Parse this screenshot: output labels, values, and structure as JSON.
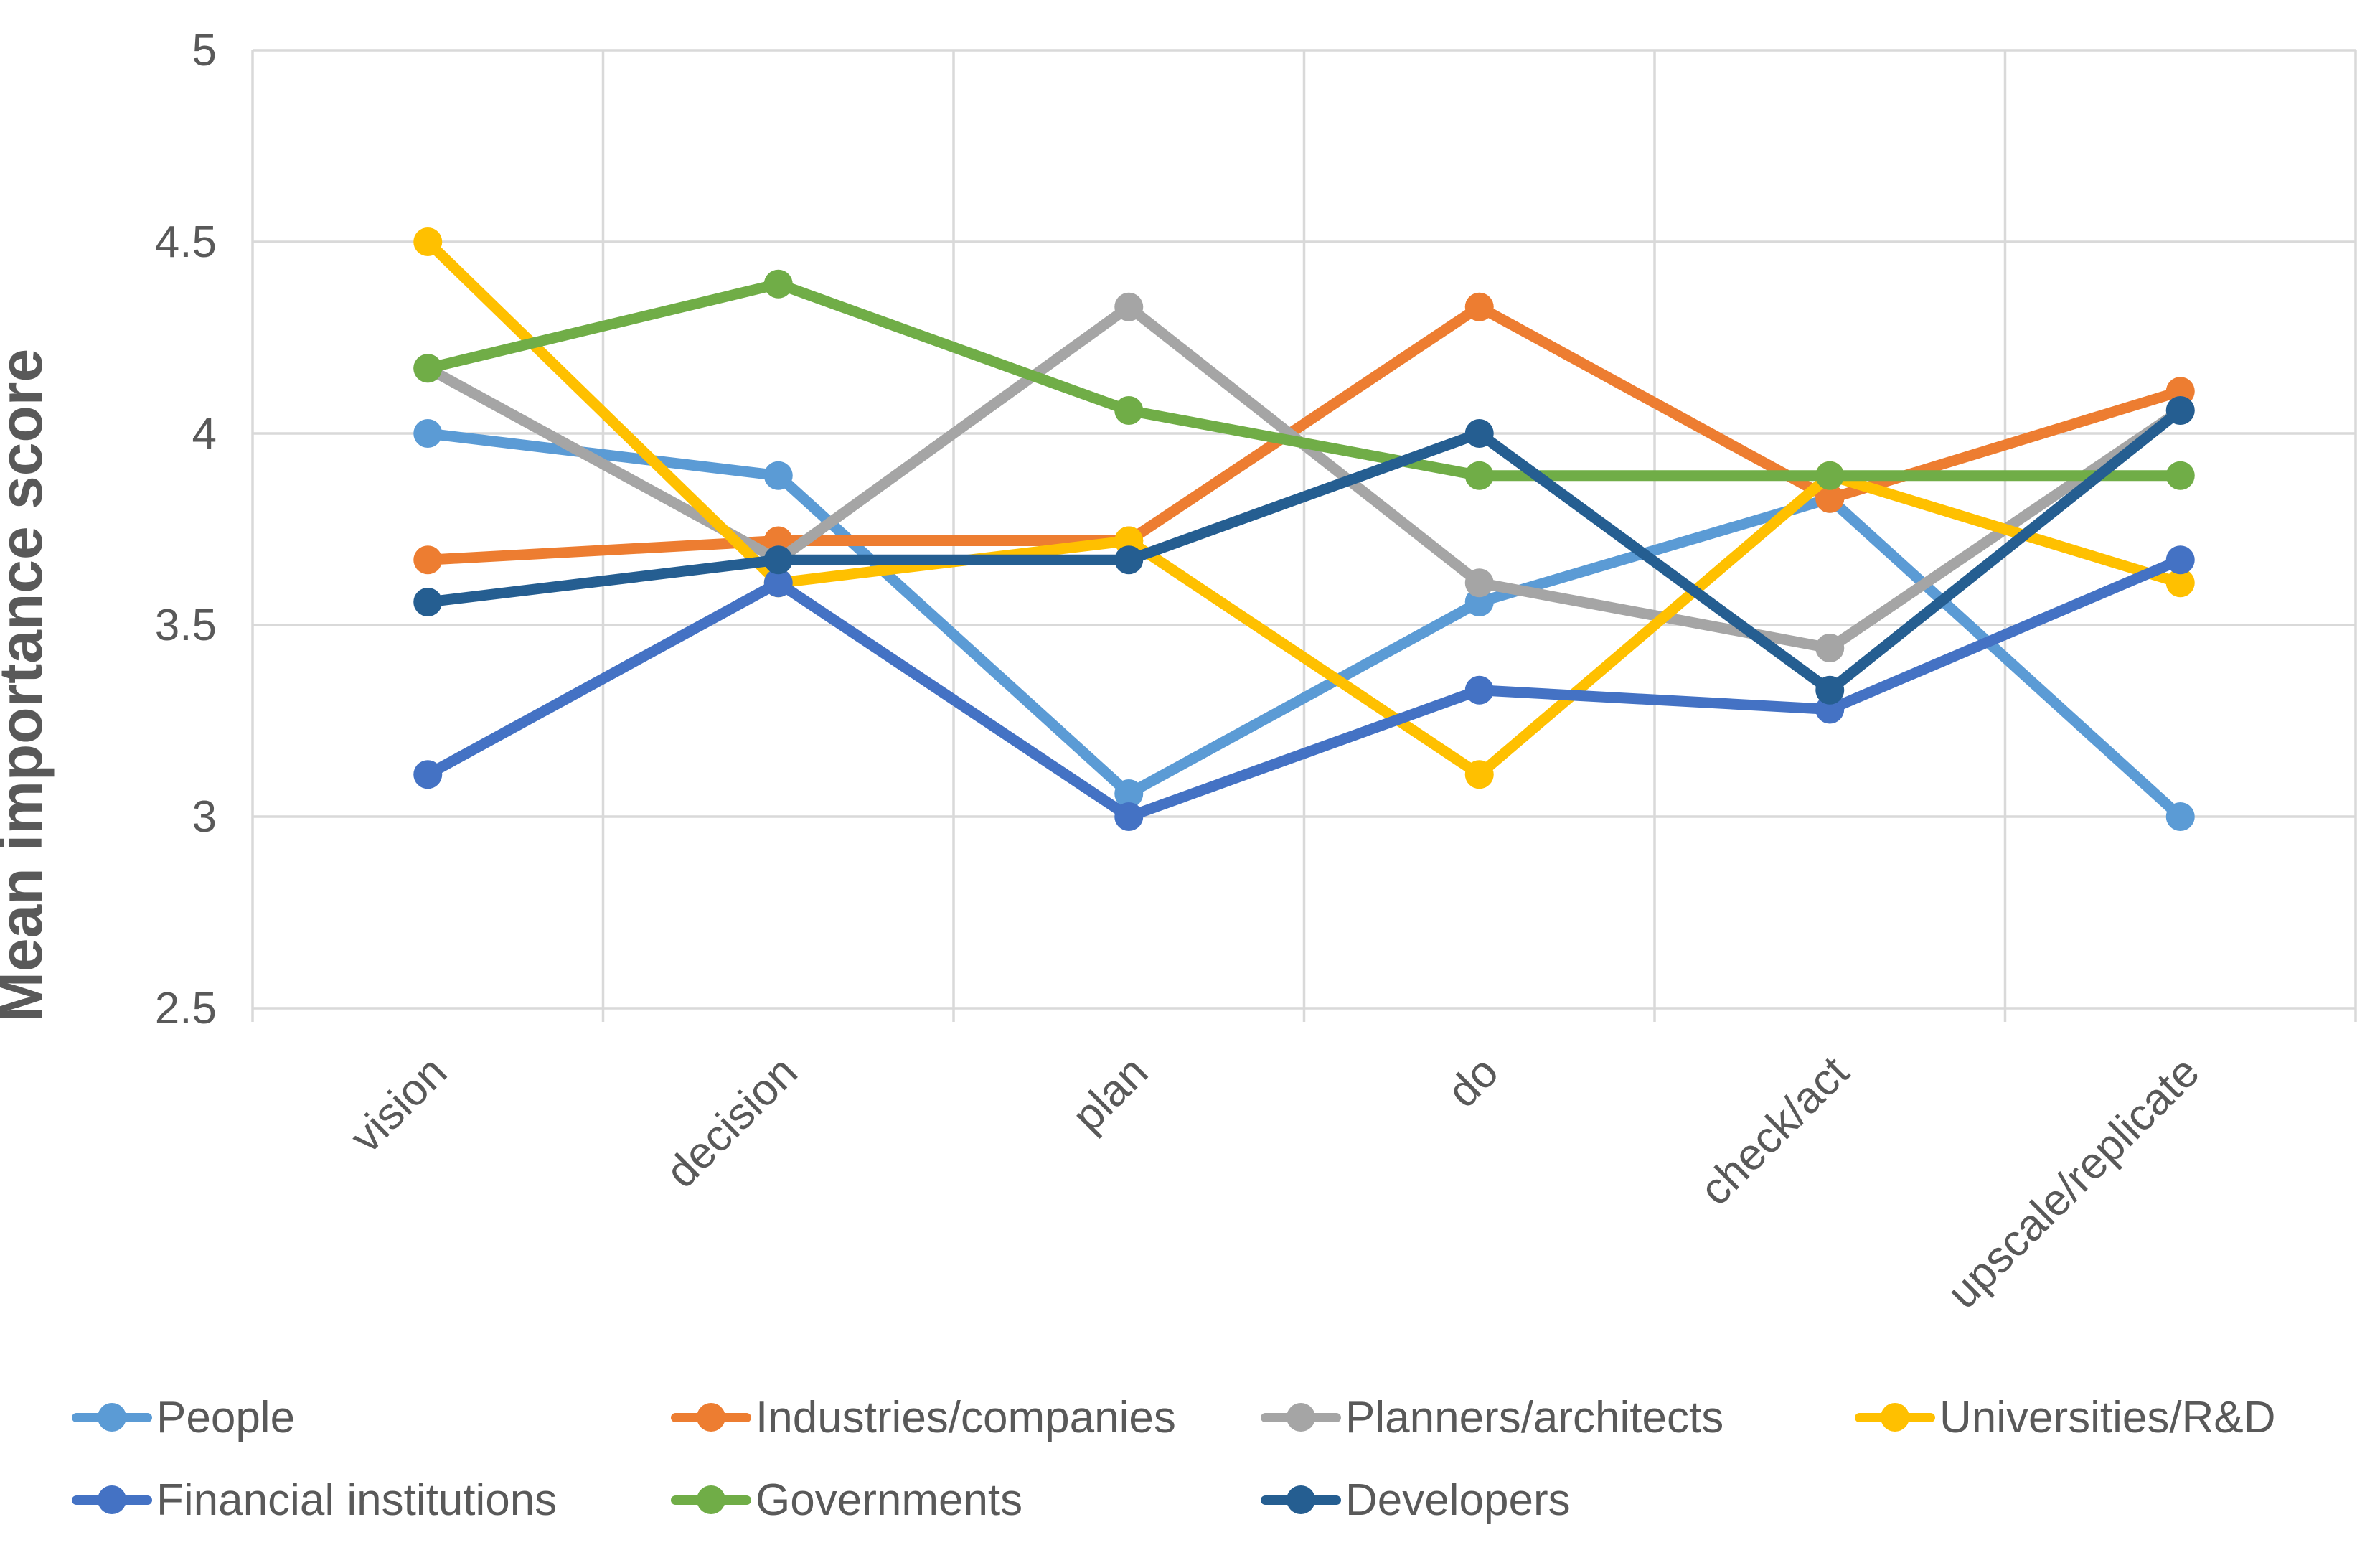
{
  "chart_data": {
    "type": "line",
    "title": "",
    "xlabel": "",
    "ylabel": "Mean importance score",
    "ylim": [
      2.5,
      5
    ],
    "grid": true,
    "legend_position": "bottom",
    "yticks": [
      {
        "value": 5,
        "label": "5"
      },
      {
        "value": 4.5,
        "label": "4.5"
      },
      {
        "value": 4,
        "label": "4"
      },
      {
        "value": 3.5,
        "label": "3.5"
      },
      {
        "value": 3,
        "label": "3"
      },
      {
        "value": 2.5,
        "label": "2.5"
      }
    ],
    "categories": [
      "vision",
      "decision",
      "plan",
      "do",
      "check/act",
      "upscale/replicate"
    ],
    "series": [
      {
        "name": "People",
        "color": "#5B9BD5",
        "values": [
          4.0,
          3.89,
          3.06,
          3.56,
          3.83,
          3.0
        ]
      },
      {
        "name": "Industries/companies",
        "color": "#ED7D31",
        "values": [
          3.67,
          3.72,
          3.72,
          4.33,
          3.83,
          4.11
        ]
      },
      {
        "name": "Planners/architects",
        "color": "#A5A5A5",
        "values": [
          4.17,
          3.67,
          4.33,
          3.61,
          3.44,
          4.06
        ]
      },
      {
        "name": "Universities/R&D",
        "color": "#FFC000",
        "values": [
          4.5,
          3.61,
          3.72,
          3.11,
          3.89,
          3.61
        ]
      },
      {
        "name": "Financial institutions",
        "color": "#4472C4",
        "values": [
          3.11,
          3.61,
          3.0,
          3.33,
          3.28,
          3.67
        ]
      },
      {
        "name": "Governments",
        "color": "#70AD47",
        "values": [
          4.17,
          4.39,
          4.06,
          3.89,
          3.89,
          3.89
        ]
      },
      {
        "name": "Developers",
        "color": "#255E91",
        "values": [
          3.56,
          3.67,
          3.67,
          4.0,
          3.33,
          4.06
        ]
      }
    ],
    "legend": {
      "rows": [
        [
          0,
          1,
          2,
          3
        ],
        [
          4,
          5,
          6
        ]
      ]
    }
  },
  "colors": {
    "gridline": "#D9D9D9",
    "text": "#595959",
    "background": "#FFFFFF"
  }
}
